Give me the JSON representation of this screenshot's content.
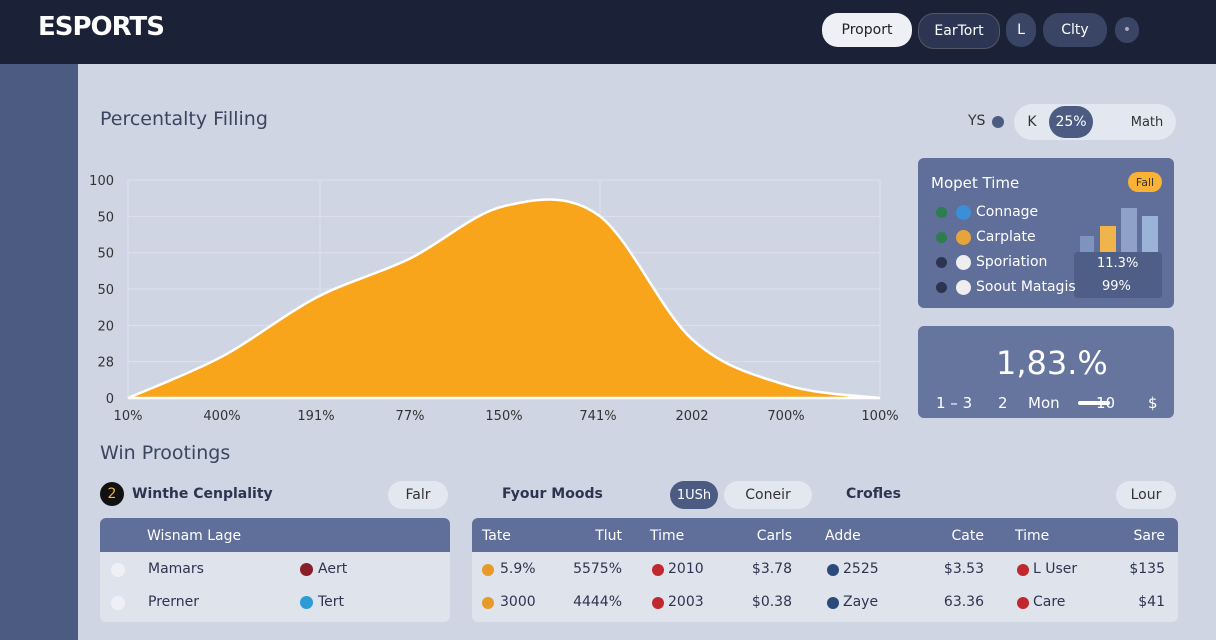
{
  "header": {
    "logo": "ESPORTS",
    "buttons": [
      "Proport",
      "EarTort",
      "L",
      "Clty"
    ]
  },
  "section_title": "Percentalty Filling",
  "toolbar": {
    "label": "YS",
    "options": [
      "K",
      "25%",
      "Math"
    ]
  },
  "chart_data": {
    "type": "area",
    "categories": [
      "10%",
      "400%",
      "191%",
      "77%",
      "150%",
      "741%",
      "2002",
      "700%",
      "100%"
    ],
    "values": [
      0,
      19,
      46,
      64,
      88,
      84,
      27,
      6,
      0
    ],
    "ylim": [
      0,
      100
    ],
    "color": "#f9a51c",
    "y_axis_labels": [
      "100",
      "50",
      "50",
      "50",
      "20",
      "28",
      "0"
    ]
  },
  "legend_card": {
    "title": "Mopet Time",
    "badge": "Fall",
    "items": [
      "Connage",
      "Carplate",
      "Sporiation",
      "Soout Matagis"
    ],
    "values": [
      "11.3%",
      "99%"
    ]
  },
  "stat_card": {
    "value": "1,83.%",
    "row": [
      "1 – 3",
      "2",
      "Mon",
      "10",
      "$"
    ]
  },
  "section2_title": "Win Prootings",
  "panel1": {
    "badge": "2",
    "title": "Winthe Cenplality",
    "button": "Falr",
    "header": "Wisnam Lage",
    "rows": [
      [
        "Mamars",
        "Aert"
      ],
      [
        "Prerner",
        "Tert"
      ]
    ]
  },
  "panel2": {
    "toolbar": [
      "Fyour Moods",
      "1USh",
      "Coneir",
      "Crofles",
      "Lour"
    ],
    "table": {
      "headers": [
        "Tate",
        "Tlut",
        "Time",
        "Carls",
        "Adde",
        "Cate",
        "Time",
        "Sare"
      ],
      "rows": [
        [
          "5.9%",
          "5575%",
          "2010",
          "$3.78",
          "2525",
          "$3.53",
          "L User",
          "$135"
        ],
        [
          "3000",
          "4444%",
          "2003",
          "$0.38",
          "Zaye",
          "63.36",
          "Care",
          "$41"
        ]
      ]
    }
  }
}
